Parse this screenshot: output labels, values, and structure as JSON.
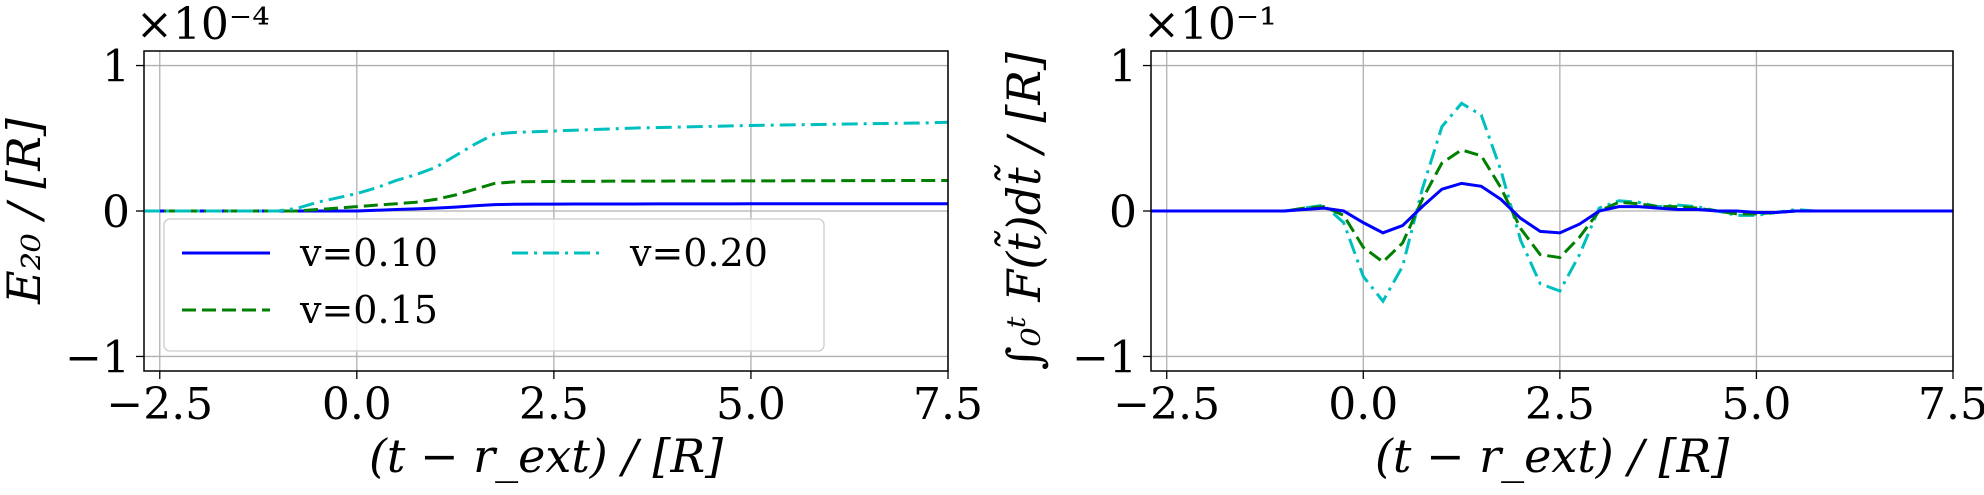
{
  "chart_data": [
    {
      "type": "line",
      "y_offset_label": "×10⁻⁴",
      "xlabel": "(t − r_ext) / [R]",
      "ylabel": "E₂₀ / [R]",
      "xlim": [
        -2.7,
        7.5
      ],
      "ylim": [
        -1.1,
        1.1
      ],
      "xticks": [
        {
          "value": -2.5,
          "label": "−2.5"
        },
        {
          "value": 0,
          "label": "0.0"
        },
        2.5,
        {
          "value": 5,
          "label": "5.0"
        },
        7.5
      ],
      "yticks": [
        {
          "value": -1,
          "label": "−1"
        },
        0,
        1
      ],
      "grid": true,
      "legend": "lower left",
      "legend_columns": 2,
      "x": [
        -2.7,
        -2.5,
        -2.25,
        -2.0,
        -1.75,
        -1.5,
        -1.25,
        -1.0,
        -0.75,
        -0.5,
        -0.25,
        0,
        0.25,
        0.5,
        0.75,
        1.0,
        1.25,
        1.5,
        1.75,
        2.0,
        2.25,
        2.5,
        2.75,
        3.0,
        3.25,
        3.5,
        3.75,
        4.0,
        4.25,
        4.5,
        4.75,
        5.0,
        5.25,
        5.5,
        5.75,
        6.0,
        6.25,
        6.5,
        6.75,
        7.0,
        7.25,
        7.5
      ],
      "series": [
        {
          "name": "v=0.10",
          "color": "#0000ff",
          "linestyle": "solid",
          "values": [
            0,
            0,
            0,
            0,
            0,
            0,
            0,
            0,
            0,
            0,
            0,
            0,
            0.005,
            0.01,
            0.015,
            0.02,
            0.027,
            0.036,
            0.044,
            0.046,
            0.047,
            0.047,
            0.048,
            0.048,
            0.048,
            0.048,
            0.049,
            0.049,
            0.049,
            0.049,
            0.049,
            0.05,
            0.05,
            0.05,
            0.05,
            0.05,
            0.05,
            0.05,
            0.05,
            0.05,
            0.05,
            0.05
          ]
        },
        {
          "name": "v=0.15",
          "color": "#008000",
          "linestyle": "dashed",
          "values": [
            0,
            0,
            0,
            0,
            0,
            0,
            0,
            0,
            0,
            0.01,
            0.02,
            0.03,
            0.04,
            0.05,
            0.06,
            0.08,
            0.11,
            0.15,
            0.19,
            0.2,
            0.202,
            0.203,
            0.204,
            0.204,
            0.205,
            0.205,
            0.205,
            0.206,
            0.206,
            0.206,
            0.207,
            0.207,
            0.207,
            0.208,
            0.208,
            0.208,
            0.209,
            0.209,
            0.209,
            0.21,
            0.21,
            0.21
          ]
        },
        {
          "name": "v=0.20",
          "color": "#00bfbf",
          "linestyle": "dashdot",
          "values": [
            0,
            0,
            0,
            0,
            0,
            0,
            0,
            0,
            0.02,
            0.06,
            0.09,
            0.12,
            0.16,
            0.21,
            0.25,
            0.3,
            0.38,
            0.46,
            0.53,
            0.54,
            0.545,
            0.55,
            0.555,
            0.56,
            0.565,
            0.57,
            0.573,
            0.576,
            0.579,
            0.582,
            0.585,
            0.588,
            0.59,
            0.592,
            0.594,
            0.596,
            0.598,
            0.6,
            0.602,
            0.604,
            0.606,
            0.61
          ]
        }
      ]
    },
    {
      "type": "line",
      "y_offset_label": "×10⁻¹",
      "xlabel": "(t − r_ext) / [R]",
      "ylabel": "∫₀ᵗ F(t̃)dt̃ / [R]",
      "xlim": [
        -2.7,
        7.5
      ],
      "ylim": [
        -1.1,
        1.1
      ],
      "xticks": [
        {
          "value": -2.5,
          "label": "−2.5"
        },
        {
          "value": 0,
          "label": "0.0"
        },
        2.5,
        {
          "value": 5,
          "label": "5.0"
        },
        7.5
      ],
      "yticks": [
        {
          "value": -1,
          "label": "−1"
        },
        0,
        1
      ],
      "grid": true,
      "x": [
        -2.7,
        -2.5,
        -2.25,
        -2.0,
        -1.75,
        -1.5,
        -1.25,
        -1.0,
        -0.75,
        -0.5,
        -0.25,
        0,
        0.25,
        0.5,
        0.75,
        1.0,
        1.25,
        1.5,
        1.75,
        2.0,
        2.25,
        2.5,
        2.75,
        3.0,
        3.25,
        3.5,
        3.75,
        4.0,
        4.25,
        4.5,
        4.75,
        5.0,
        5.25,
        5.5,
        5.75,
        6.0,
        6.25,
        6.5,
        6.75,
        7.0,
        7.25,
        7.5
      ],
      "series": [
        {
          "color": "#00bfbf",
          "linestyle": "dashdot",
          "values": [
            0,
            0,
            0,
            0,
            0,
            0,
            0,
            0,
            0.02,
            0.04,
            -0.08,
            -0.45,
            -0.62,
            -0.38,
            0.15,
            0.58,
            0.74,
            0.66,
            0.28,
            -0.2,
            -0.5,
            -0.55,
            -0.3,
            0.02,
            0.07,
            0.06,
            0.03,
            0.04,
            0.03,
            0,
            -0.03,
            -0.03,
            -0.01,
            0.01,
            0,
            0,
            0,
            0,
            0,
            0,
            0,
            0
          ]
        },
        {
          "color": "#008000",
          "linestyle": "dashed",
          "values": [
            0,
            0,
            0,
            0,
            0,
            0,
            0,
            0,
            0.02,
            0.03,
            -0.03,
            -0.25,
            -0.35,
            -0.22,
            0.08,
            0.33,
            0.42,
            0.38,
            0.16,
            -0.12,
            -0.3,
            -0.32,
            -0.18,
            0,
            0.06,
            0.05,
            0.03,
            0.03,
            0.02,
            0,
            -0.02,
            -0.02,
            -0.01,
            0,
            0,
            0,
            0,
            0,
            0,
            0,
            0,
            0
          ]
        },
        {
          "color": "#0000ff",
          "linestyle": "solid",
          "values": [
            0,
            0,
            0,
            0,
            0,
            0,
            0,
            0,
            0.01,
            0.02,
            0,
            -0.08,
            -0.15,
            -0.1,
            0.03,
            0.15,
            0.19,
            0.17,
            0.08,
            -0.05,
            -0.14,
            -0.15,
            -0.09,
            0,
            0.03,
            0.03,
            0.02,
            0.01,
            0.01,
            0,
            0,
            -0.01,
            -0.01,
            0,
            0,
            0,
            0,
            0,
            0,
            0,
            0,
            0
          ]
        }
      ]
    }
  ]
}
